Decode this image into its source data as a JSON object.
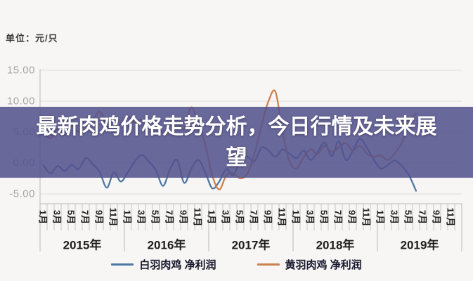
{
  "header": {
    "unit_label": "单位：元/只"
  },
  "banner": {
    "title": "最新肉鸡价格走势分析，今日行情及未来展望",
    "line1": "最新肉鸡价格走势分析，今日行情及未来展",
    "line2": "望",
    "background": "rgba(84,83,141,0.87)"
  },
  "axes": {
    "y_tick_labels": [
      "15.00",
      "10.00",
      "5.00",
      "0.00",
      "-5.00"
    ],
    "y_tick_values": [
      15,
      10,
      5,
      0,
      -5
    ],
    "month_labels": [
      "1月",
      "3月",
      "5月",
      "7月",
      "9月",
      "11月"
    ],
    "year_labels": [
      "2015年",
      "2016年",
      "2017年",
      "2018年",
      "2019年"
    ]
  },
  "colors": {
    "white_broiler_line": "#4f77a5",
    "yellow_broiler_line": "#cd7f4e",
    "grid": "#e0dfdd",
    "axis": "#b9b8b6",
    "tick": "#c6c5c3"
  },
  "chart_data": {
    "type": "line",
    "title": "最新肉鸡价格走势分析，今日行情及未来展望",
    "ylabel": "单位：元/只",
    "ylim": [
      -5,
      15
    ],
    "grid": "horizontal",
    "legend_position": "bottom",
    "x": [
      "2015-01",
      "2015-02",
      "2015-03",
      "2015-04",
      "2015-05",
      "2015-06",
      "2015-07",
      "2015-08",
      "2015-09",
      "2015-10",
      "2015-11",
      "2015-12",
      "2016-01",
      "2016-02",
      "2016-03",
      "2016-04",
      "2016-05",
      "2016-06",
      "2016-07",
      "2016-08",
      "2016-09",
      "2016-10",
      "2016-11",
      "2016-12",
      "2017-01",
      "2017-02",
      "2017-03",
      "2017-04",
      "2017-05",
      "2017-06",
      "2017-07",
      "2017-08",
      "2017-09",
      "2017-10",
      "2017-11",
      "2017-12",
      "2018-01",
      "2018-02",
      "2018-03",
      "2018-04",
      "2018-05",
      "2018-06",
      "2018-07",
      "2018-08",
      "2018-09",
      "2018-10",
      "2018-11",
      "2018-12",
      "2019-01",
      "2019-02",
      "2019-03",
      "2019-04",
      "2019-05",
      "2019-06"
    ],
    "series": [
      {
        "name": "白羽肉鸡 净利润",
        "color": "#4f77a5",
        "values": [
          -0.4,
          -1.7,
          -0.5,
          -1.3,
          -0.3,
          -1.0,
          0.8,
          -0.2,
          -1.5,
          -4.0,
          -1.5,
          -3.0,
          -1.5,
          0.3,
          1.3,
          0.2,
          -1.2,
          -3.7,
          -1.0,
          0.5,
          -3.2,
          -1.0,
          0.5,
          -1.5,
          -4.1,
          -3.0,
          -1.0,
          -2.0,
          0.5,
          1.0,
          0.3,
          2.5,
          2.0,
          1.0,
          2.2,
          1.5,
          0.8,
          2.0,
          0.5,
          1.8,
          3.3,
          1.1,
          3.5,
          0.5,
          2.0,
          3.9,
          2.5,
          0.5,
          -0.9,
          -0.3,
          0.4,
          -0.5,
          -2.0,
          -4.5
        ]
      },
      {
        "name": "黄羽肉鸡 净利润",
        "color": "#cd7f4e",
        "values": [
          5.0,
          4.0,
          5.5,
          4.5,
          6.0,
          5.0,
          6.5,
          7.0,
          8.3,
          6.0,
          5.0,
          6.5,
          7.5,
          6.5,
          7.0,
          5.5,
          6.0,
          5.0,
          6.0,
          6.5,
          5.5,
          9.0,
          6.5,
          3.0,
          -2.0,
          -4.3,
          -2.0,
          -1.7,
          -2.5,
          -1.7,
          1.5,
          6.0,
          10.0,
          11.5,
          5.0,
          0.2,
          -0.9,
          1.0,
          2.2,
          1.5,
          2.8,
          1.8,
          2.5,
          3.2,
          2.0,
          2.8,
          1.5,
          1.0,
          1.2,
          0.5,
          1.6,
          3.3,
          6.5,
          8.0
        ]
      }
    ]
  }
}
